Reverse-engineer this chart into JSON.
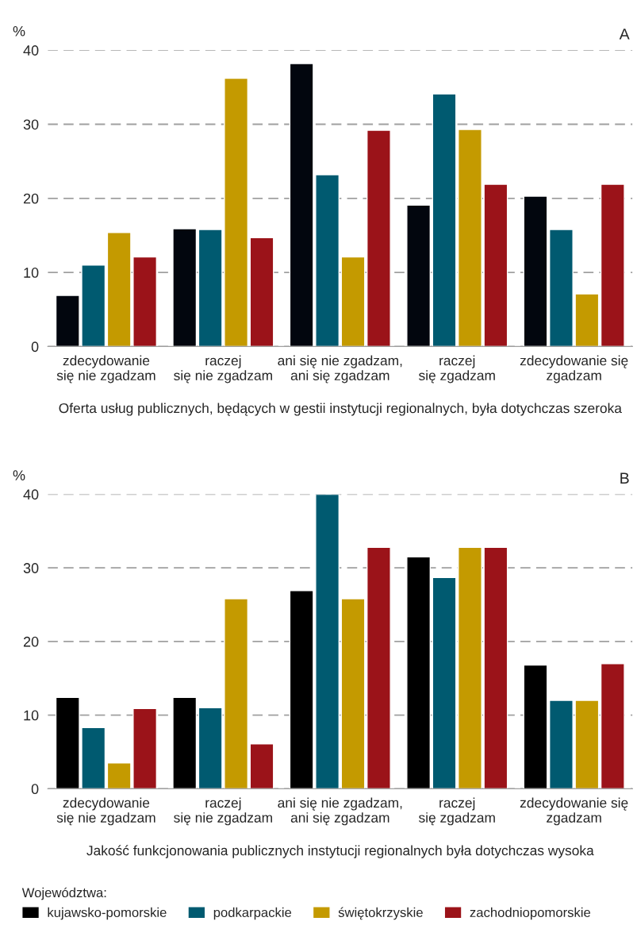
{
  "chart_data": [
    {
      "type": "bar",
      "ylabel": "%",
      "xlabel": "Oferta usług publicznych, będących w gestii instytucji regionalnych, była dotychczas szeroka",
      "annotations": [
        "A"
      ],
      "categories": [
        "zdecydowanie\nsię nie zgadzam",
        "raczej\nsię nie zgadzam",
        "ani się nie zgadzam,\nani się zgadzam",
        "raczej\nsię zgadzam",
        "zdecydowanie się\nzgadzam"
      ],
      "series": [
        {
          "color": "#02060e",
          "values": [
            6.9,
            15.9,
            38.2,
            19.1,
            20.3
          ]
        },
        {
          "color": "#005a70",
          "values": [
            11.0,
            15.8,
            23.2,
            34.1,
            15.8
          ]
        },
        {
          "color": "#c49a00",
          "values": [
            15.4,
            36.2,
            12.1,
            29.3,
            7.1
          ]
        },
        {
          "color": "#9b1319",
          "values": [
            12.1,
            14.7,
            29.2,
            21.9,
            21.9
          ]
        }
      ],
      "ylim": [
        0,
        40
      ],
      "yticks": [
        0,
        10,
        20,
        30,
        40
      ],
      "grid": "y"
    },
    {
      "type": "bar",
      "ylabel": "%",
      "xlabel": "Jakość funkcjonowania publicznych instytucji regionalnych była dotychczas wysoka",
      "annotations": [
        "B"
      ],
      "categories": [
        "zdecydowanie\nsię nie zgadzam",
        "raczej\nsię nie zgadzam",
        "ani się nie zgadzam,\nani się zgadzam",
        "raczej\nsię zgadzam",
        "zdecydowanie się\nzgadzam"
      ],
      "series": [
        {
          "name": "kujawsko-pomorskie",
          "color": "#000000",
          "values": [
            12.4,
            12.4,
            26.9,
            31.5,
            16.8
          ]
        },
        {
          "name": "podkarpackie",
          "color": "#005a70",
          "values": [
            8.3,
            11.0,
            40.0,
            28.7,
            12.0
          ]
        },
        {
          "name": "świętokrzyskie",
          "color": "#c49a00",
          "values": [
            3.5,
            25.8,
            25.8,
            32.8,
            12.0
          ]
        },
        {
          "name": "zachodniopomorskie",
          "color": "#9b1319",
          "values": [
            10.9,
            6.1,
            32.8,
            32.8,
            17.0
          ]
        }
      ],
      "ylim": [
        0,
        40
      ],
      "yticks": [
        0,
        10,
        20,
        30,
        40
      ],
      "grid": "y",
      "legend": "bottom",
      "legend_title": "Województwa:"
    }
  ]
}
